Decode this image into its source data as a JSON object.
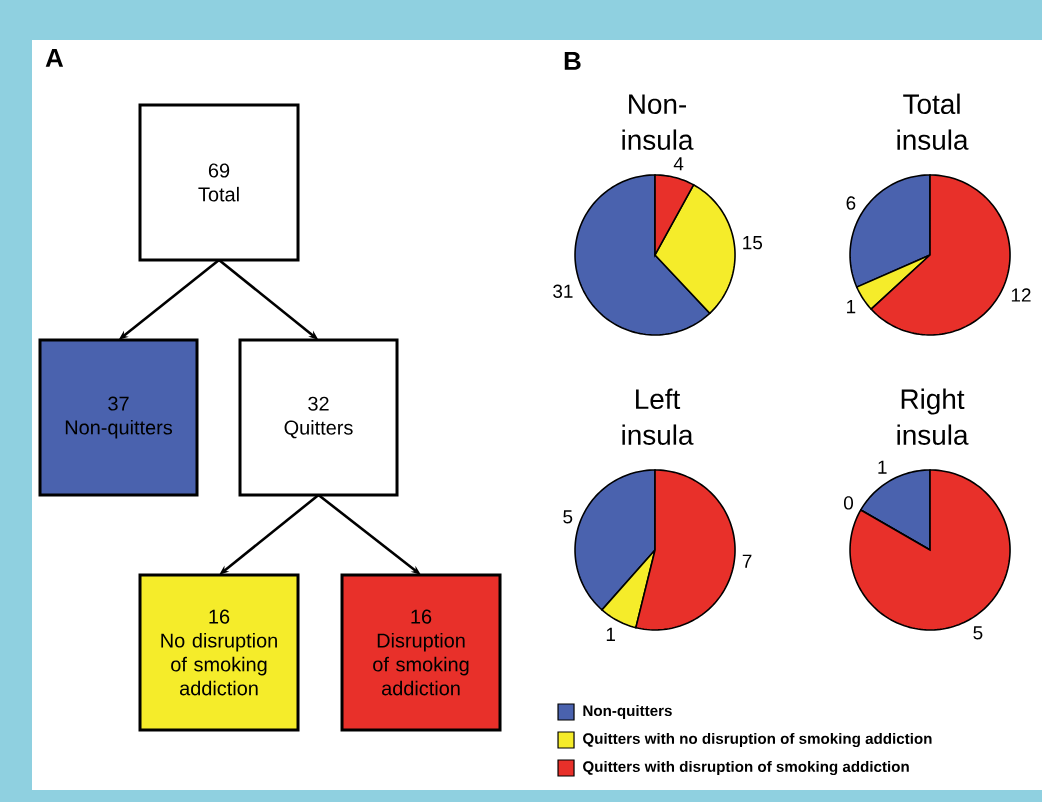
{
  "chart_data": [
    {
      "type": "other",
      "annotations": [
        "A"
      ],
      "categories": [
        "Total",
        "Non-quitters",
        "Quitters",
        "No disruption of smoking addiction",
        "Disruption of smoking addiction"
      ],
      "values": [
        69,
        37,
        32,
        16,
        16
      ],
      "colors": [
        "#ffffff",
        "#4a62ae",
        "#ffffff",
        "#f5ec2a",
        "#e8302a"
      ],
      "data_labels": true
    },
    {
      "type": "pie",
      "title": "Non-insula",
      "annotations": [
        "B"
      ],
      "categories": [
        null,
        null,
        null
      ],
      "values": [
        31,
        15,
        4
      ],
      "colors": [
        "#4a62ae",
        "#f5ec2a",
        "#e8302a"
      ],
      "data_labels": true
    },
    {
      "type": "pie",
      "title": "Total insula",
      "categories": [
        null,
        null,
        null
      ],
      "values": [
        6,
        1,
        12
      ],
      "colors": [
        "#4a62ae",
        "#f5ec2a",
        "#e8302a"
      ],
      "data_labels": true
    },
    {
      "type": "pie",
      "title": "Left insula",
      "categories": [
        "Non-quitters",
        "Quitters with no disruption of smoking addiction",
        "Quitters with disruption of smoking addiction"
      ],
      "values": [
        5,
        1,
        7
      ],
      "colors": [
        "#4a62ae",
        "#f5ec2a",
        "#e8302a"
      ],
      "data_labels": true,
      "legend": "bottom"
    },
    {
      "type": "pie",
      "title": "Right insula",
      "categories": [
        null,
        null,
        null
      ],
      "values": [
        1,
        0,
        5
      ],
      "value_labels": [
        "1",
        "0",
        "5"
      ],
      "colors": [
        "#4a62ae",
        "#f5ec2a",
        "#e8302a"
      ]
    }
  ]
}
